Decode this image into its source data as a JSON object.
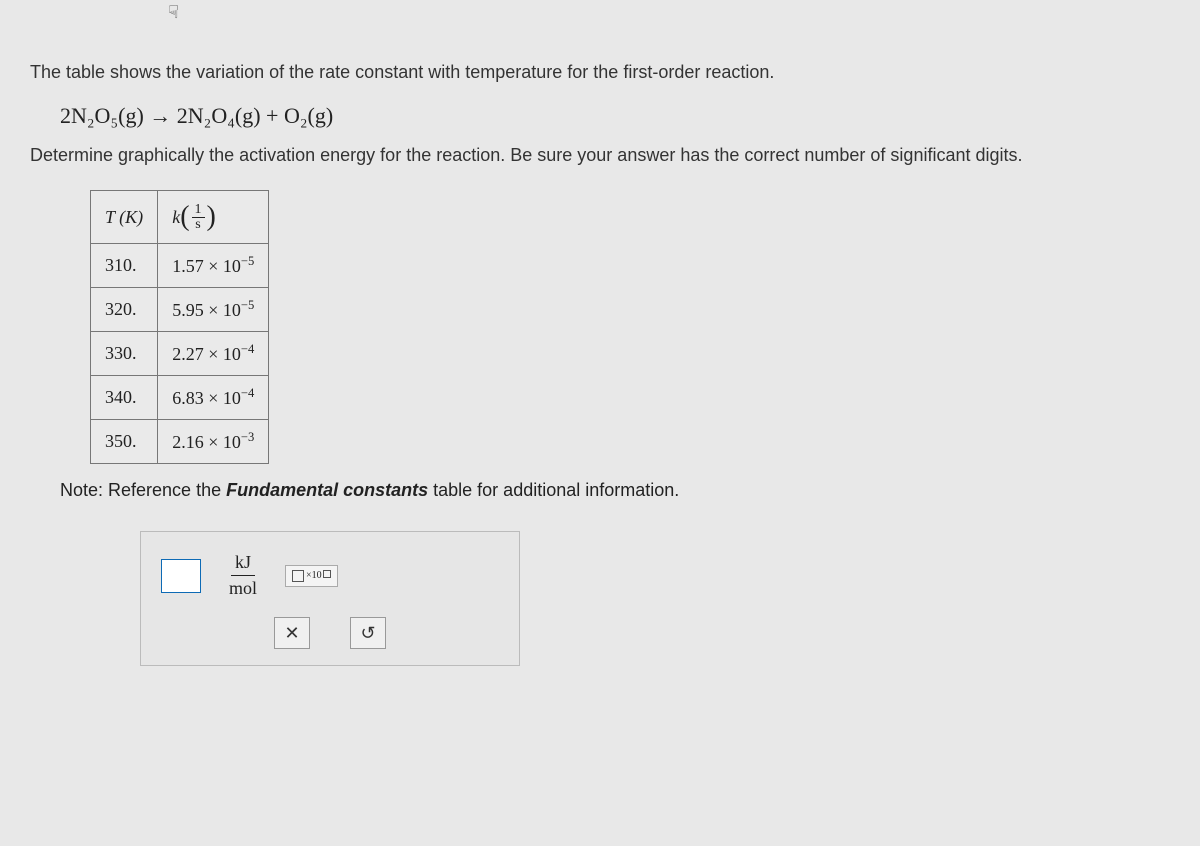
{
  "intro": "The table shows the variation of the rate constant with temperature for the first-order reaction.",
  "equation": {
    "lhs": "2N₂O₅(g)",
    "arrow": "→",
    "rhs": "2N₂O₄(g) + O₂(g)"
  },
  "instruction": "Determine graphically the activation energy for the reaction. Be sure your answer has the correct number of significant digits.",
  "table": {
    "headers": {
      "col1": "T (K)",
      "col2_prefix": "k",
      "col2_num": "1",
      "col2_den": "s"
    },
    "rows": [
      {
        "t": "310.",
        "mant": "1.57",
        "exp": "−5"
      },
      {
        "t": "320.",
        "mant": "5.95",
        "exp": "−5"
      },
      {
        "t": "330.",
        "mant": "2.27",
        "exp": "−4"
      },
      {
        "t": "340.",
        "mant": "6.83",
        "exp": "−4"
      },
      {
        "t": "350.",
        "mant": "2.16",
        "exp": "−3"
      }
    ]
  },
  "note": {
    "prefix": "Note: Reference the ",
    "link": "Fundamental constants",
    "suffix": " table for additional information."
  },
  "answer": {
    "unit_top": "kJ",
    "unit_bot": "mol",
    "sci_label": "×10",
    "clear_glyph": "✕",
    "reset_glyph": "↺"
  }
}
